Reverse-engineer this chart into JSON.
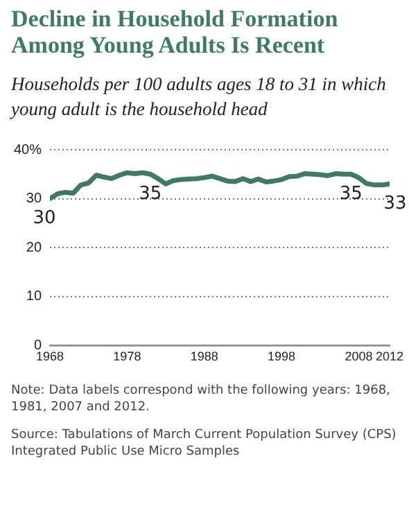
{
  "chart_data": {
    "type": "line",
    "title": "Decline in Household Formation Among Young Adults Is Recent",
    "subtitle": "Households per 100 adults ages 18 to 31 in which young adult is the household head",
    "x": [
      1968,
      1969,
      1970,
      1971,
      1972,
      1973,
      1974,
      1975,
      1976,
      1977,
      1978,
      1979,
      1980,
      1981,
      1982,
      1983,
      1984,
      1985,
      1986,
      1987,
      1988,
      1989,
      1990,
      1991,
      1992,
      1993,
      1994,
      1995,
      1996,
      1997,
      1998,
      1999,
      2000,
      2001,
      2002,
      2003,
      2004,
      2005,
      2006,
      2007,
      2008,
      2009,
      2010,
      2011,
      2012
    ],
    "series": [
      {
        "color": "#3f7a66",
        "values": [
          30,
          31,
          31.3,
          31.1,
          32.8,
          33.2,
          34.8,
          34.4,
          34.1,
          34.8,
          35.3,
          35.1,
          35.3,
          35,
          34.1,
          33,
          33.7,
          33.9,
          34,
          34.1,
          34.3,
          34.6,
          34.1,
          33.6,
          33.5,
          34.1,
          33.5,
          34,
          33.4,
          33.6,
          33.9,
          34.5,
          34.6,
          35.1,
          35,
          34.9,
          34.7,
          35.1,
          35,
          35,
          34.3,
          33.1,
          32.8,
          32.8,
          33
        ],
        "value_labels": [
          "30",
          null,
          null,
          null,
          null,
          null,
          null,
          null,
          null,
          null,
          null,
          null,
          null,
          "35",
          null,
          null,
          null,
          null,
          null,
          null,
          null,
          null,
          null,
          null,
          null,
          null,
          null,
          null,
          null,
          null,
          null,
          null,
          null,
          null,
          null,
          null,
          null,
          null,
          null,
          "35",
          null,
          null,
          null,
          null,
          "33"
        ]
      }
    ],
    "xlim": [
      1968,
      2012
    ],
    "xticks": [
      1968,
      1978,
      1988,
      1998,
      2008,
      2012
    ],
    "ylim": [
      0,
      40
    ],
    "yticks": [
      0,
      10,
      20,
      30,
      {
        "value": 40,
        "label": "40%"
      }
    ],
    "grid": "y",
    "legend": false,
    "marker": "none",
    "line_style": "solid",
    "annotations": [
      "Note: Data labels correspond with the following years: 1968, 1981, 2007 and 2012.",
      "Source: Tabulations of March Current Population Survey (CPS) Integrated Public Use Micro Samples"
    ]
  }
}
